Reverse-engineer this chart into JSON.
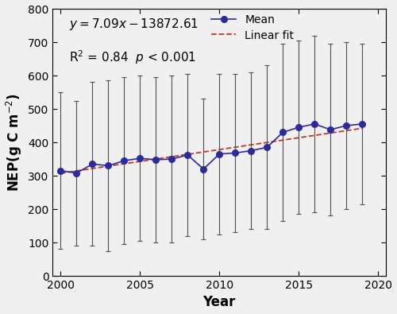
{
  "years": [
    2000,
    2001,
    2002,
    2003,
    2004,
    2005,
    2006,
    2007,
    2008,
    2009,
    2010,
    2011,
    2012,
    2013,
    2014,
    2015,
    2016,
    2017,
    2018,
    2019
  ],
  "mean": [
    315,
    308,
    335,
    330,
    345,
    352,
    348,
    350,
    362,
    320,
    365,
    368,
    375,
    385,
    430,
    445,
    455,
    438,
    450,
    455
  ],
  "sd_upper": [
    550,
    525,
    580,
    585,
    595,
    600,
    595,
    600,
    605,
    530,
    605,
    605,
    610,
    630,
    695,
    705,
    720,
    695,
    700,
    695
  ],
  "sd_lower": [
    80,
    90,
    90,
    75,
    95,
    105,
    100,
    100,
    120,
    110,
    125,
    130,
    140,
    140,
    165,
    185,
    190,
    180,
    200,
    215
  ],
  "slope": 7.09,
  "intercept": -13872.61,
  "r_squared": 0.84,
  "line_color": "#2b2b9b",
  "marker_color": "#2b2b9b",
  "fit_color": "#c0392b",
  "errorbar_color": "#555555",
  "ylabel": "NEP(g C m$^{-2}$)",
  "xlabel": "Year",
  "ylim": [
    0,
    800
  ],
  "yticks": [
    0,
    100,
    200,
    300,
    400,
    500,
    600,
    700,
    800
  ],
  "xlim": [
    1999.5,
    2020.5
  ],
  "xticks": [
    2000,
    2005,
    2010,
    2015,
    2020
  ],
  "axis_fontsize": 12,
  "tick_fontsize": 10,
  "legend_fontsize": 10,
  "annot_fontsize": 11,
  "equation_text": "$y = 7.09x - 13872.61$",
  "r2_text": "R$^2$ = 0.84  $p$ < 0.001",
  "bg_color": "#f0f0f0"
}
